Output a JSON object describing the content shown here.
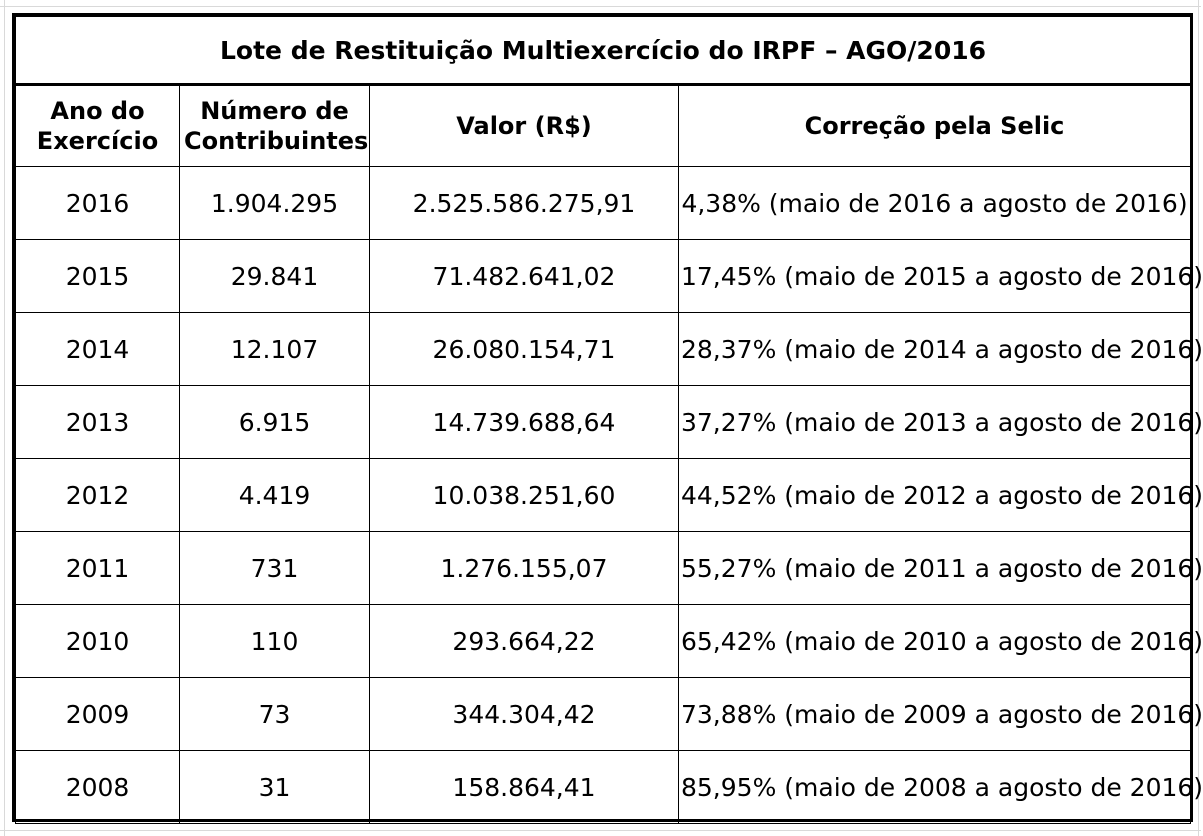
{
  "table": {
    "title": "Lote de Restituição Multiexercício do IRPF – AGO/2016",
    "headers": {
      "ano": "Ano do Exercício",
      "contribuintes": "Número de Contribuintes",
      "valor": "Valor (R$)",
      "correcao": "Correção pela Selic"
    },
    "rows": [
      {
        "ano": "2016",
        "contribuintes": "1.904.295",
        "valor": "2.525.586.275,91",
        "correcao": "4,38% (maio de 2016 a agosto de 2016)"
      },
      {
        "ano": "2015",
        "contribuintes": "29.841",
        "valor": "71.482.641,02",
        "correcao": "17,45% (maio de 2015 a agosto de 2016)"
      },
      {
        "ano": "2014",
        "contribuintes": "12.107",
        "valor": "26.080.154,71",
        "correcao": "28,37% (maio de 2014 a agosto de 2016)"
      },
      {
        "ano": "2013",
        "contribuintes": "6.915",
        "valor": "14.739.688,64",
        "correcao": "37,27% (maio de 2013 a agosto de 2016)"
      },
      {
        "ano": "2012",
        "contribuintes": "4.419",
        "valor": "10.038.251,60",
        "correcao": "44,52% (maio de 2012 a agosto de 2016)"
      },
      {
        "ano": "2011",
        "contribuintes": "731",
        "valor": "1.276.155,07",
        "correcao": "55,27% (maio de 2011 a agosto de 2016)"
      },
      {
        "ano": "2010",
        "contribuintes": "110",
        "valor": "293.664,22",
        "correcao": "65,42% (maio de 2010 a agosto de 2016)"
      },
      {
        "ano": "2009",
        "contribuintes": "73",
        "valor": "344.304,42",
        "correcao": "73,88% (maio de 2009 a agosto de 2016)"
      },
      {
        "ano": "2008",
        "contribuintes": "31",
        "valor": "158.864,41",
        "correcao": "85,95% (maio de 2008 a agosto de 2016)"
      }
    ]
  }
}
